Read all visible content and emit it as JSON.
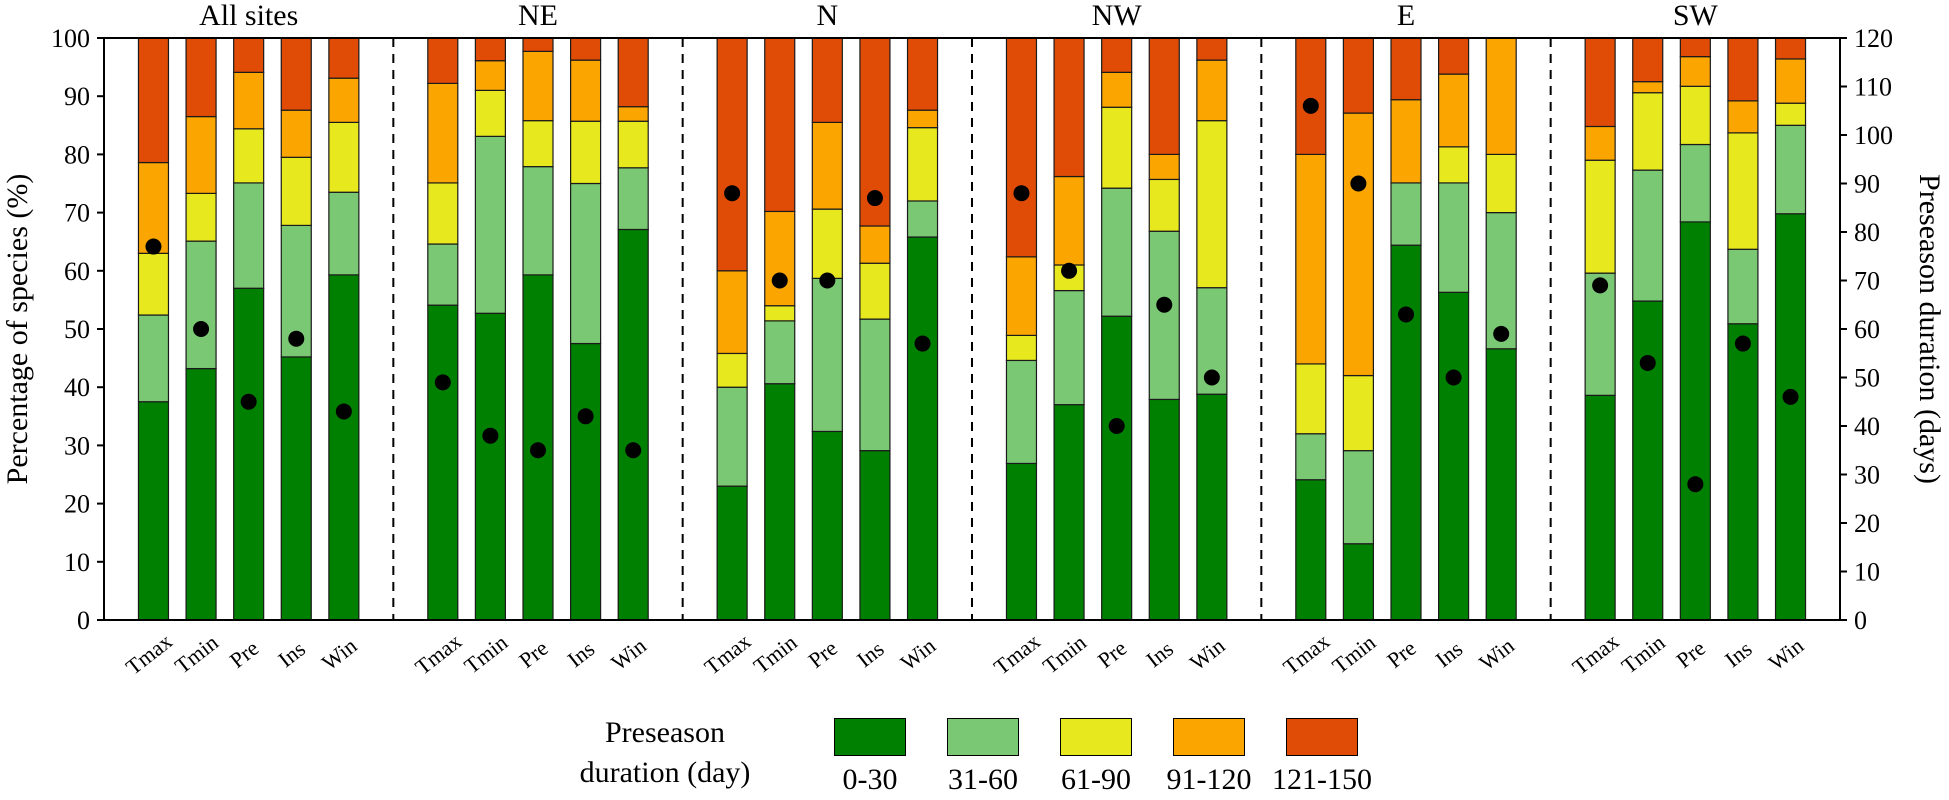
{
  "chart_data": {
    "type": "bar",
    "stacked": true,
    "ylabel": "Percentage of species (%)",
    "y2label": "Preseason duration (days)",
    "ylim": [
      0,
      100
    ],
    "y2lim": [
      0,
      120
    ],
    "yticks": [
      0,
      10,
      20,
      30,
      40,
      50,
      60,
      70,
      80,
      90,
      100
    ],
    "y2ticks": [
      0,
      10,
      20,
      30,
      40,
      50,
      60,
      70,
      80,
      90,
      100,
      110,
      120
    ],
    "categories": [
      "Tmax",
      "Tmin",
      "Pre",
      "Ins",
      "Win"
    ],
    "legend_title": [
      "Preseason",
      "duration (day)"
    ],
    "series": [
      {
        "name": "0-30",
        "color": "#008000"
      },
      {
        "name": "31-60",
        "color": "#7ac874"
      },
      {
        "name": "61-90",
        "color": "#e8e81f"
      },
      {
        "name": "91-120",
        "color": "#faa500"
      },
      {
        "name": "121-150",
        "color": "#e04c06"
      }
    ],
    "panels": [
      {
        "name": "All sites",
        "values": [
          [
            37.5,
            14.9,
            10.6,
            15.6,
            21.4
          ],
          [
            43.2,
            21.9,
            8.2,
            13.2,
            13.5
          ],
          [
            57.0,
            18.1,
            9.3,
            9.7,
            5.9
          ],
          [
            45.2,
            22.6,
            11.7,
            8.1,
            12.4
          ],
          [
            59.3,
            14.2,
            12.0,
            7.6,
            6.9
          ]
        ],
        "preseason_days": [
          77,
          60,
          45,
          58,
          43
        ]
      },
      {
        "name": "NE",
        "values": [
          [
            54.1,
            10.5,
            10.5,
            17.1,
            7.8
          ],
          [
            52.7,
            30.4,
            7.9,
            5.1,
            3.9
          ],
          [
            59.3,
            18.6,
            7.9,
            11.9,
            2.3
          ],
          [
            47.5,
            27.5,
            10.7,
            10.5,
            3.8
          ],
          [
            67.1,
            10.6,
            8.0,
            2.5,
            11.8
          ]
        ],
        "preseason_days": [
          49,
          38,
          35,
          42,
          35
        ]
      },
      {
        "name": "N",
        "values": [
          [
            23.0,
            17.0,
            5.8,
            14.2,
            40.0
          ],
          [
            40.6,
            10.8,
            2.6,
            16.2,
            29.8
          ],
          [
            32.4,
            26.3,
            11.9,
            14.9,
            14.5
          ],
          [
            29.1,
            22.6,
            9.6,
            6.4,
            32.3
          ],
          [
            65.8,
            6.2,
            12.6,
            3.0,
            12.4
          ]
        ],
        "preseason_days": [
          88,
          70,
          70,
          87,
          57
        ]
      },
      {
        "name": "NW",
        "values": [
          [
            26.9,
            17.7,
            4.3,
            13.5,
            37.6
          ],
          [
            37.0,
            19.6,
            4.4,
            15.2,
            23.8
          ],
          [
            52.2,
            22.0,
            13.9,
            6.0,
            5.9
          ],
          [
            37.9,
            28.9,
            8.9,
            4.3,
            20.0
          ],
          [
            38.8,
            18.3,
            28.7,
            10.4,
            3.8
          ]
        ],
        "preseason_days": [
          88,
          72,
          40,
          65,
          50
        ]
      },
      {
        "name": "E",
        "values": [
          [
            24.1,
            7.9,
            12.0,
            36.0,
            20.0
          ],
          [
            13.1,
            16.0,
            12.9,
            45.1,
            12.9
          ],
          [
            64.4,
            10.7,
            0.0,
            14.3,
            10.6
          ],
          [
            56.3,
            18.8,
            6.2,
            12.5,
            6.2
          ],
          [
            46.6,
            23.4,
            10.0,
            20.0,
            0.0
          ]
        ],
        "preseason_days": [
          106,
          90,
          63,
          50,
          59
        ]
      },
      {
        "name": "SW",
        "values": [
          [
            38.6,
            21.0,
            19.4,
            5.8,
            15.2
          ],
          [
            54.8,
            22.5,
            13.3,
            1.9,
            7.5
          ],
          [
            68.4,
            13.3,
            10.0,
            5.1,
            3.2
          ],
          [
            50.9,
            12.8,
            20.0,
            5.5,
            10.8
          ],
          [
            69.8,
            15.2,
            3.8,
            7.6,
            3.6
          ]
        ],
        "preseason_days": [
          69,
          53,
          28,
          57,
          46
        ]
      }
    ]
  }
}
